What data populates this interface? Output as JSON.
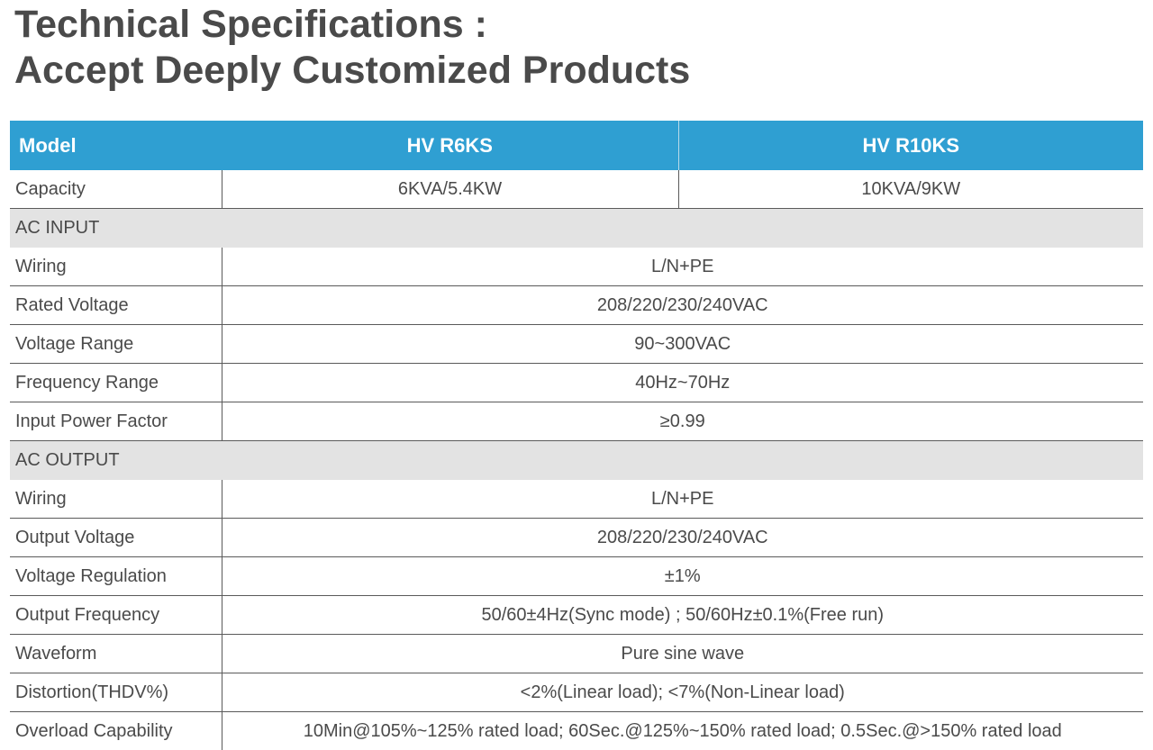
{
  "title": {
    "line1": "Technical Specifications :",
    "line2": "Accept Deeply Customized Products"
  },
  "table": {
    "header": {
      "label": "Model",
      "models": [
        "HV R6KS",
        "HV R10KS"
      ]
    },
    "capacity": {
      "label": "Capacity",
      "values": [
        "6KVA/5.4KW",
        "10KVA/9KW"
      ]
    },
    "ac_input": {
      "section": "AC INPUT",
      "rows": [
        {
          "label": "Wiring",
          "value": "L/N+PE"
        },
        {
          "label": "Rated Voltage",
          "value": "208/220/230/240VAC"
        },
        {
          "label": "Voltage Range",
          "value": "90~300VAC"
        },
        {
          "label": "Frequency Range",
          "value": "40Hz~70Hz"
        },
        {
          "label": "Input Power Factor",
          "value": "≥0.99"
        }
      ]
    },
    "ac_output": {
      "section": "AC OUTPUT",
      "rows": [
        {
          "label": "Wiring",
          "value": "L/N+PE"
        },
        {
          "label": "Output Voltage",
          "value": "208/220/230/240VAC"
        },
        {
          "label": "Voltage Regulation",
          "value": "±1%"
        },
        {
          "label": "Output Frequency",
          "value": "50/60±4Hz(Sync mode) ; 50/60Hz±0.1%(Free run)"
        },
        {
          "label": "Waveform",
          "value": "Pure sine wave"
        },
        {
          "label": "Distortion(THDV%)",
          "value": "<2%(Linear load); <7%(Non-Linear load)"
        },
        {
          "label": "Overload Capability",
          "value": "10Min@105%~125% rated load; 60Sec.@125%~150% rated load; 0.5Sec.@>150% rated load"
        }
      ]
    }
  },
  "colors": {
    "header_blue": "#2f9fd2",
    "section_gray": "#e3e3e3",
    "text_gray": "#4a4a4a"
  }
}
